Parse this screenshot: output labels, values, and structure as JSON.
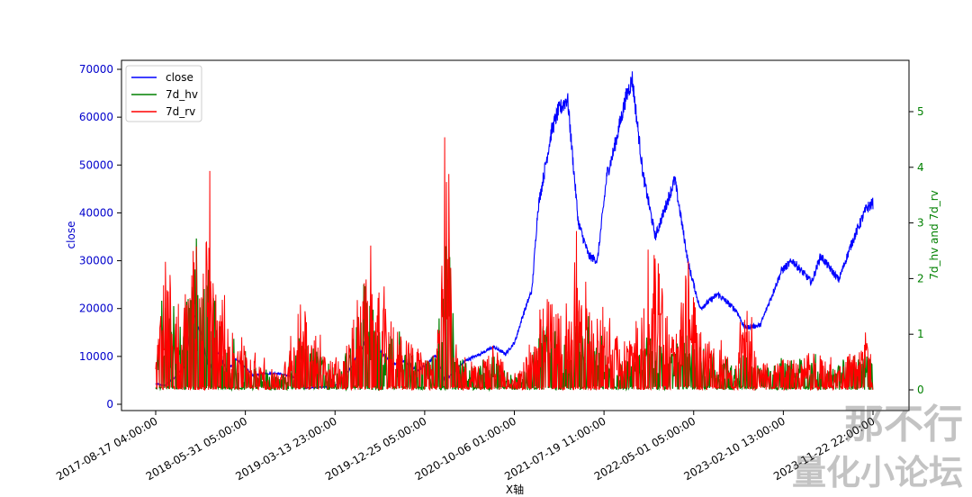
{
  "chart_data": {
    "type": "line",
    "xlabel": "X轴",
    "ylabel_left": "close",
    "ylabel_right": "7d_hv and 7d_rv",
    "ylim_left": [
      0,
      70000
    ],
    "ylim_right": [
      -0.2,
      5.8
    ],
    "left_ticks": [
      0,
      10000,
      20000,
      30000,
      40000,
      50000,
      60000,
      70000
    ],
    "right_ticks": [
      0,
      1,
      2,
      3,
      4,
      5
    ],
    "x_tick_labels": [
      "2017-08-17 04:00:00",
      "2018-05-31 05:00:00",
      "2019-03-13 23:00:00",
      "2019-12-25 05:00:00",
      "2020-10-06 01:00:00",
      "2021-07-19 11:00:00",
      "2022-05-01 05:00:00",
      "2023-02-10 13:00:00",
      "2023-11-22 22:00:00"
    ],
    "x_range": [
      "2017-08-17",
      "2023-12-31"
    ],
    "legend_position": "upper-left",
    "grid": false,
    "series": [
      {
        "name": "close",
        "axis": "left",
        "color": "#0000ff",
        "x": [
          "2017-08-17",
          "2017-09-15",
          "2017-10-20",
          "2017-11-20",
          "2017-12-17",
          "2018-01-15",
          "2018-02-06",
          "2018-03-05",
          "2018-04-06",
          "2018-05-05",
          "2018-06-29",
          "2018-08-10",
          "2018-09-15",
          "2018-11-15",
          "2018-12-15",
          "2019-02-15",
          "2019-04-02",
          "2019-05-15",
          "2019-06-26",
          "2019-08-10",
          "2019-09-26",
          "2019-10-26",
          "2019-12-18",
          "2020-02-12",
          "2020-03-13",
          "2020-05-15",
          "2020-07-20",
          "2020-08-17",
          "2020-09-25",
          "2020-10-25",
          "2020-11-20",
          "2020-12-20",
          "2021-01-08",
          "2021-02-21",
          "2021-03-13",
          "2021-04-14",
          "2021-05-19",
          "2021-06-22",
          "2021-07-20",
          "2021-08-20",
          "2021-09-07",
          "2021-10-20",
          "2021-11-10",
          "2021-12-15",
          "2022-01-24",
          "2022-03-28",
          "2022-05-12",
          "2022-06-18",
          "2022-08-15",
          "2022-10-15",
          "2022-11-09",
          "2022-12-30",
          "2023-03-10",
          "2023-04-14",
          "2023-06-15",
          "2023-07-14",
          "2023-09-11",
          "2023-10-25",
          "2023-12-10",
          "2023-12-31"
        ],
        "y": [
          4300,
          3900,
          5800,
          8000,
          19000,
          14000,
          7000,
          11000,
          6800,
          9500,
          6000,
          6400,
          6500,
          5600,
          3400,
          3600,
          4100,
          8000,
          13000,
          11500,
          8300,
          9200,
          7000,
          10200,
          4900,
          9000,
          11000,
          12000,
          10500,
          13000,
          18500,
          24000,
          41000,
          57000,
          61000,
          64000,
          38000,
          31000,
          30000,
          48000,
          52000,
          64000,
          68000,
          48000,
          35000,
          47000,
          29000,
          20000,
          23000,
          19500,
          16000,
          16500,
          28000,
          30000,
          25500,
          31000,
          26000,
          34000,
          41000,
          42000
        ]
      },
      {
        "name": "7d_hv",
        "axis": "right",
        "color": "#008000",
        "x": [
          "2017-08-17",
          "2017-09-15",
          "2017-10-20",
          "2017-11-25",
          "2017-12-20",
          "2018-01-18",
          "2018-02-06",
          "2018-03-05",
          "2018-04-06",
          "2018-05-15",
          "2018-07-01",
          "2018-08-15",
          "2018-09-20",
          "2018-11-20",
          "2018-12-20",
          "2019-02-15",
          "2019-04-02",
          "2019-05-15",
          "2019-06-26",
          "2019-08-10",
          "2019-09-26",
          "2019-10-26",
          "2019-12-18",
          "2020-02-12",
          "2020-03-13",
          "2020-04-15",
          "2020-06-15",
          "2020-08-15",
          "2020-10-15",
          "2020-12-15",
          "2021-01-10",
          "2021-02-21",
          "2021-04-18",
          "2021-05-19",
          "2021-06-22",
          "2021-08-20",
          "2021-10-20",
          "2021-11-25",
          "2022-01-24",
          "2022-03-28",
          "2022-05-12",
          "2022-06-18",
          "2022-08-15",
          "2022-10-15",
          "2022-11-09",
          "2022-12-30",
          "2023-03-10",
          "2023-04-14",
          "2023-06-15",
          "2023-08-17",
          "2023-10-25",
          "2023-12-10",
          "2023-12-31"
        ],
        "y": [
          0.6,
          2.5,
          1.4,
          2.0,
          3.1,
          2.3,
          3.2,
          1.7,
          1.2,
          0.8,
          0.6,
          0.5,
          0.3,
          1.0,
          1.3,
          0.7,
          0.5,
          1.1,
          2.8,
          1.5,
          1.3,
          1.0,
          0.8,
          0.8,
          5.3,
          0.9,
          0.5,
          0.8,
          0.3,
          0.6,
          1.4,
          1.8,
          1.0,
          2.0,
          1.5,
          0.8,
          0.7,
          0.9,
          1.2,
          0.8,
          1.3,
          1.1,
          0.8,
          0.5,
          1.3,
          0.5,
          0.7,
          0.6,
          0.7,
          0.5,
          0.8,
          0.9,
          0.6
        ]
      },
      {
        "name": "7d_rv",
        "axis": "right",
        "color": "#ff0000",
        "x": [
          "2017-08-17",
          "2017-09-15",
          "2017-10-20",
          "2017-11-25",
          "2017-12-20",
          "2018-01-18",
          "2018-02-06",
          "2018-03-05",
          "2018-04-06",
          "2018-05-15",
          "2018-07-01",
          "2018-08-15",
          "2018-09-20",
          "2018-11-20",
          "2018-12-20",
          "2019-02-15",
          "2019-04-02",
          "2019-05-15",
          "2019-06-26",
          "2019-08-10",
          "2019-09-26",
          "2019-10-26",
          "2019-12-18",
          "2020-02-12",
          "2020-03-13",
          "2020-04-15",
          "2020-06-15",
          "2020-08-15",
          "2020-10-15",
          "2020-12-15",
          "2021-01-10",
          "2021-02-21",
          "2021-04-18",
          "2021-05-19",
          "2021-06-22",
          "2021-08-20",
          "2021-10-20",
          "2021-11-25",
          "2022-01-24",
          "2022-03-28",
          "2022-05-12",
          "2022-06-18",
          "2022-08-15",
          "2022-10-15",
          "2022-11-09",
          "2022-12-30",
          "2023-03-10",
          "2023-04-14",
          "2023-06-15",
          "2023-08-17",
          "2023-10-25",
          "2023-12-10",
          "2023-12-31"
        ],
        "y": [
          0.5,
          3.3,
          1.7,
          2.5,
          4.2,
          3.0,
          4.5,
          2.2,
          1.6,
          1.2,
          0.7,
          0.6,
          0.4,
          1.5,
          2.0,
          0.8,
          0.6,
          1.6,
          3.0,
          2.2,
          1.7,
          1.3,
          1.0,
          0.9,
          5.6,
          1.2,
          0.6,
          1.2,
          0.4,
          0.9,
          1.9,
          2.4,
          1.5,
          3.3,
          2.0,
          1.5,
          1.0,
          1.7,
          3.4,
          1.1,
          3.3,
          1.4,
          1.0,
          0.6,
          2.3,
          0.6,
          0.9,
          0.8,
          1.0,
          0.6,
          0.9,
          1.5,
          0.5
        ]
      }
    ]
  },
  "watermark": {
    "line1": "那不行",
    "line2": "量化小论坛"
  }
}
